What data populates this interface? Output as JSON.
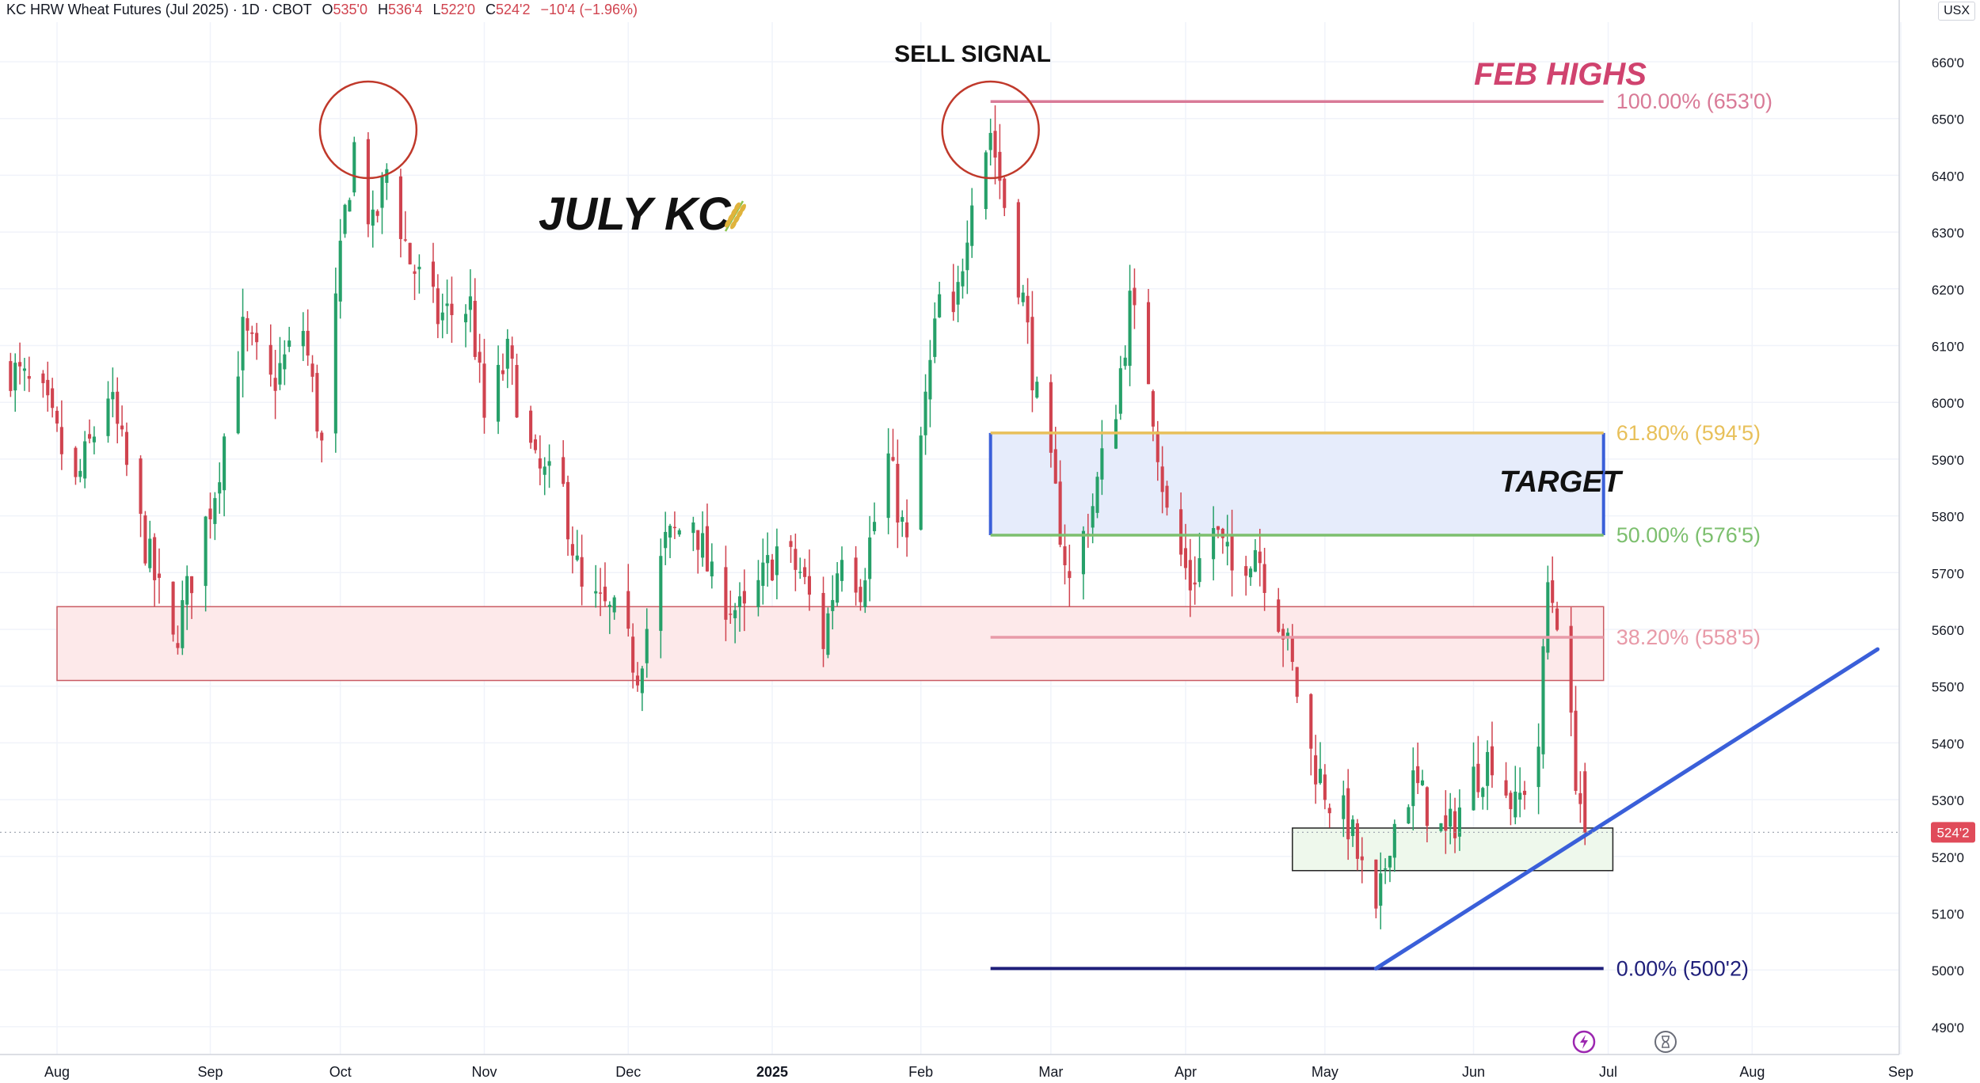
{
  "header": {
    "symbol": "KC HRW Wheat Futures (Jul 2025) · 1D · CBOT",
    "open_label": "O",
    "open": "535'0",
    "high_label": "H",
    "high": "536'4",
    "low_label": "L",
    "low": "522'0",
    "close_label": "C",
    "close": "524'2",
    "change": "−10'4 (−1.96%)"
  },
  "currency": "USX",
  "last_price_label": "524'2",
  "colors": {
    "up": "#26a069",
    "down": "#d0434f",
    "fib_100": "#d97a97",
    "fib_618": "#e8c05a",
    "fib_50": "#7cbf6e",
    "fib_382": "#e89aa8",
    "fib_0": "#1f1f7a",
    "trendline": "#3a5fd9",
    "target_fill": "#e6ecfb",
    "resistance_fill": "#fde9ea",
    "support_fill": "#eef8ec",
    "circle": "#c0392b",
    "feb_highs": "#d0436f"
  },
  "annotations": {
    "sell_signal": "SELL SIGNAL",
    "july_kc": "JULY KC",
    "july_kc_icon": "wheat-icon",
    "feb_highs": "FEB HIGHS",
    "target": "TARGET",
    "fib_100": "100.00% (653'0)",
    "fib_618": "61.80% (594'5)",
    "fib_50": "50.00% (576'5)",
    "fib_382": "38.20% (558'5)",
    "fib_0": "0.00% (500'2)"
  },
  "toolbar_icons": [
    "lightning-icon",
    "hourglass-icon"
  ],
  "chart_data": {
    "type": "candlestick",
    "title": "KC HRW Wheat Futures (Jul 2025) · 1D · CBOT",
    "ylim": [
      486,
      664
    ],
    "y_ticks": [
      490,
      500,
      510,
      520,
      530,
      540,
      550,
      560,
      570,
      580,
      590,
      600,
      610,
      620,
      630,
      640,
      650,
      660
    ],
    "y_tick_labels": [
      "490'0",
      "500'0",
      "510'0",
      "520'0",
      "530'0",
      "540'0",
      "550'0",
      "560'0",
      "570'0",
      "580'0",
      "590'0",
      "600'0",
      "610'0",
      "620'0",
      "630'0",
      "640'0",
      "650'0",
      "660'0"
    ],
    "x_axis": {
      "start": "2024-07-22",
      "end": "2025-09-02",
      "ticks": [
        {
          "date": "2024-08-01",
          "label": "Aug"
        },
        {
          "date": "2024-09-03",
          "label": "Sep"
        },
        {
          "date": "2024-10-01",
          "label": "Oct"
        },
        {
          "date": "2024-11-01",
          "label": "Nov"
        },
        {
          "date": "2024-12-02",
          "label": "Dec"
        },
        {
          "date": "2025-01-02",
          "label": "2025",
          "bold": true
        },
        {
          "date": "2025-02-03",
          "label": "Feb"
        },
        {
          "date": "2025-03-03",
          "label": "Mar"
        },
        {
          "date": "2025-04-01",
          "label": "Apr"
        },
        {
          "date": "2025-05-01",
          "label": "May"
        },
        {
          "date": "2025-06-02",
          "label": "Jun"
        },
        {
          "date": "2025-07-01",
          "label": "Jul"
        },
        {
          "date": "2025-08-01",
          "label": "Aug"
        },
        {
          "date": "2025-09-02",
          "label": "Sep"
        }
      ]
    },
    "grid": true,
    "last_price": 524.25,
    "waypoints": [
      [
        "2024-07-22",
        606
      ],
      [
        "2024-07-29",
        600
      ],
      [
        "2024-08-05",
        585
      ],
      [
        "2024-08-12",
        602
      ],
      [
        "2024-08-19",
        578
      ],
      [
        "2024-08-26",
        557
      ],
      [
        "2024-09-04",
        585
      ],
      [
        "2024-09-10",
        612
      ],
      [
        "2024-09-16",
        603
      ],
      [
        "2024-09-23",
        613
      ],
      [
        "2024-09-27",
        592
      ],
      [
        "2024-10-02",
        633
      ],
      [
        "2024-10-04",
        645
      ],
      [
        "2024-10-08",
        630
      ],
      [
        "2024-10-11",
        641
      ],
      [
        "2024-10-16",
        625
      ],
      [
        "2024-10-22",
        615
      ],
      [
        "2024-10-29",
        617
      ],
      [
        "2024-11-01",
        597
      ],
      [
        "2024-11-06",
        608
      ],
      [
        "2024-11-12",
        588
      ],
      [
        "2024-11-18",
        584
      ],
      [
        "2024-11-22",
        566
      ],
      [
        "2024-11-29",
        562
      ],
      [
        "2024-12-04",
        553
      ],
      [
        "2024-12-10",
        575
      ],
      [
        "2024-12-16",
        580
      ],
      [
        "2024-12-20",
        568
      ],
      [
        "2024-12-27",
        562
      ],
      [
        "2025-01-03",
        574
      ],
      [
        "2025-01-08",
        570
      ],
      [
        "2025-01-13",
        558
      ],
      [
        "2025-01-17",
        575
      ],
      [
        "2025-01-21",
        568
      ],
      [
        "2025-01-27",
        590
      ],
      [
        "2025-01-31",
        574
      ],
      [
        "2025-02-04",
        600
      ],
      [
        "2025-02-07",
        618
      ],
      [
        "2025-02-10",
        613
      ],
      [
        "2025-02-14",
        638
      ],
      [
        "2025-02-18",
        648
      ],
      [
        "2025-02-21",
        635
      ],
      [
        "2025-02-25",
        618
      ],
      [
        "2025-02-28",
        600
      ],
      [
        "2025-03-04",
        583
      ],
      [
        "2025-03-07",
        568
      ],
      [
        "2025-03-12",
        582
      ],
      [
        "2025-03-17",
        600
      ],
      [
        "2025-03-20",
        617
      ],
      [
        "2025-03-24",
        605
      ],
      [
        "2025-03-28",
        580
      ],
      [
        "2025-04-02",
        568
      ],
      [
        "2025-04-07",
        578
      ],
      [
        "2025-04-11",
        570
      ],
      [
        "2025-04-16",
        575
      ],
      [
        "2025-04-22",
        560
      ],
      [
        "2025-04-28",
        538
      ],
      [
        "2025-05-02",
        530
      ],
      [
        "2025-05-06",
        526
      ],
      [
        "2025-05-12",
        508
      ],
      [
        "2025-05-15",
        524
      ],
      [
        "2025-05-20",
        533
      ],
      [
        "2025-05-27",
        523
      ],
      [
        "2025-06-02",
        534
      ],
      [
        "2025-06-06",
        538
      ],
      [
        "2025-06-11",
        528
      ],
      [
        "2025-06-16",
        540
      ],
      [
        "2025-06-18",
        568
      ],
      [
        "2025-06-20",
        563
      ],
      [
        "2025-06-24",
        535
      ],
      [
        "2025-06-26",
        524.25
      ]
    ],
    "zones": {
      "resistance_box": {
        "from": "2024-08-01",
        "to": "2025-06-30",
        "low": 551,
        "high": 564
      },
      "support_box": {
        "from": "2025-04-24",
        "to": "2025-07-02",
        "low": 517.5,
        "high": 525
      },
      "target_box": {
        "from": "2025-02-18",
        "to": "2025-06-30",
        "low": 576.6,
        "high": 594.6
      }
    },
    "fib_levels": [
      {
        "label": "100.00% (653'0)",
        "value": 653.0,
        "from": "2025-02-18",
        "to": "2025-06-30"
      },
      {
        "label": "61.80% (594'5)",
        "value": 594.6,
        "from": "2025-02-18",
        "to": "2025-06-30"
      },
      {
        "label": "50.00% (576'5)",
        "value": 576.6,
        "from": "2025-02-18",
        "to": "2025-06-30"
      },
      {
        "label": "38.20% (558'5)",
        "value": 558.6,
        "from": "2025-02-18",
        "to": "2025-06-30"
      },
      {
        "label": "0.00% (500'2)",
        "value": 500.25,
        "from": "2025-02-18",
        "to": "2025-06-30"
      }
    ],
    "trendline": {
      "from": [
        "2025-05-12",
        500.25
      ],
      "to": [
        "2025-08-28",
        556.5
      ]
    },
    "circles": [
      {
        "date": "2024-10-07",
        "value": 648
      },
      {
        "date": "2025-02-18",
        "value": 648
      }
    ]
  }
}
